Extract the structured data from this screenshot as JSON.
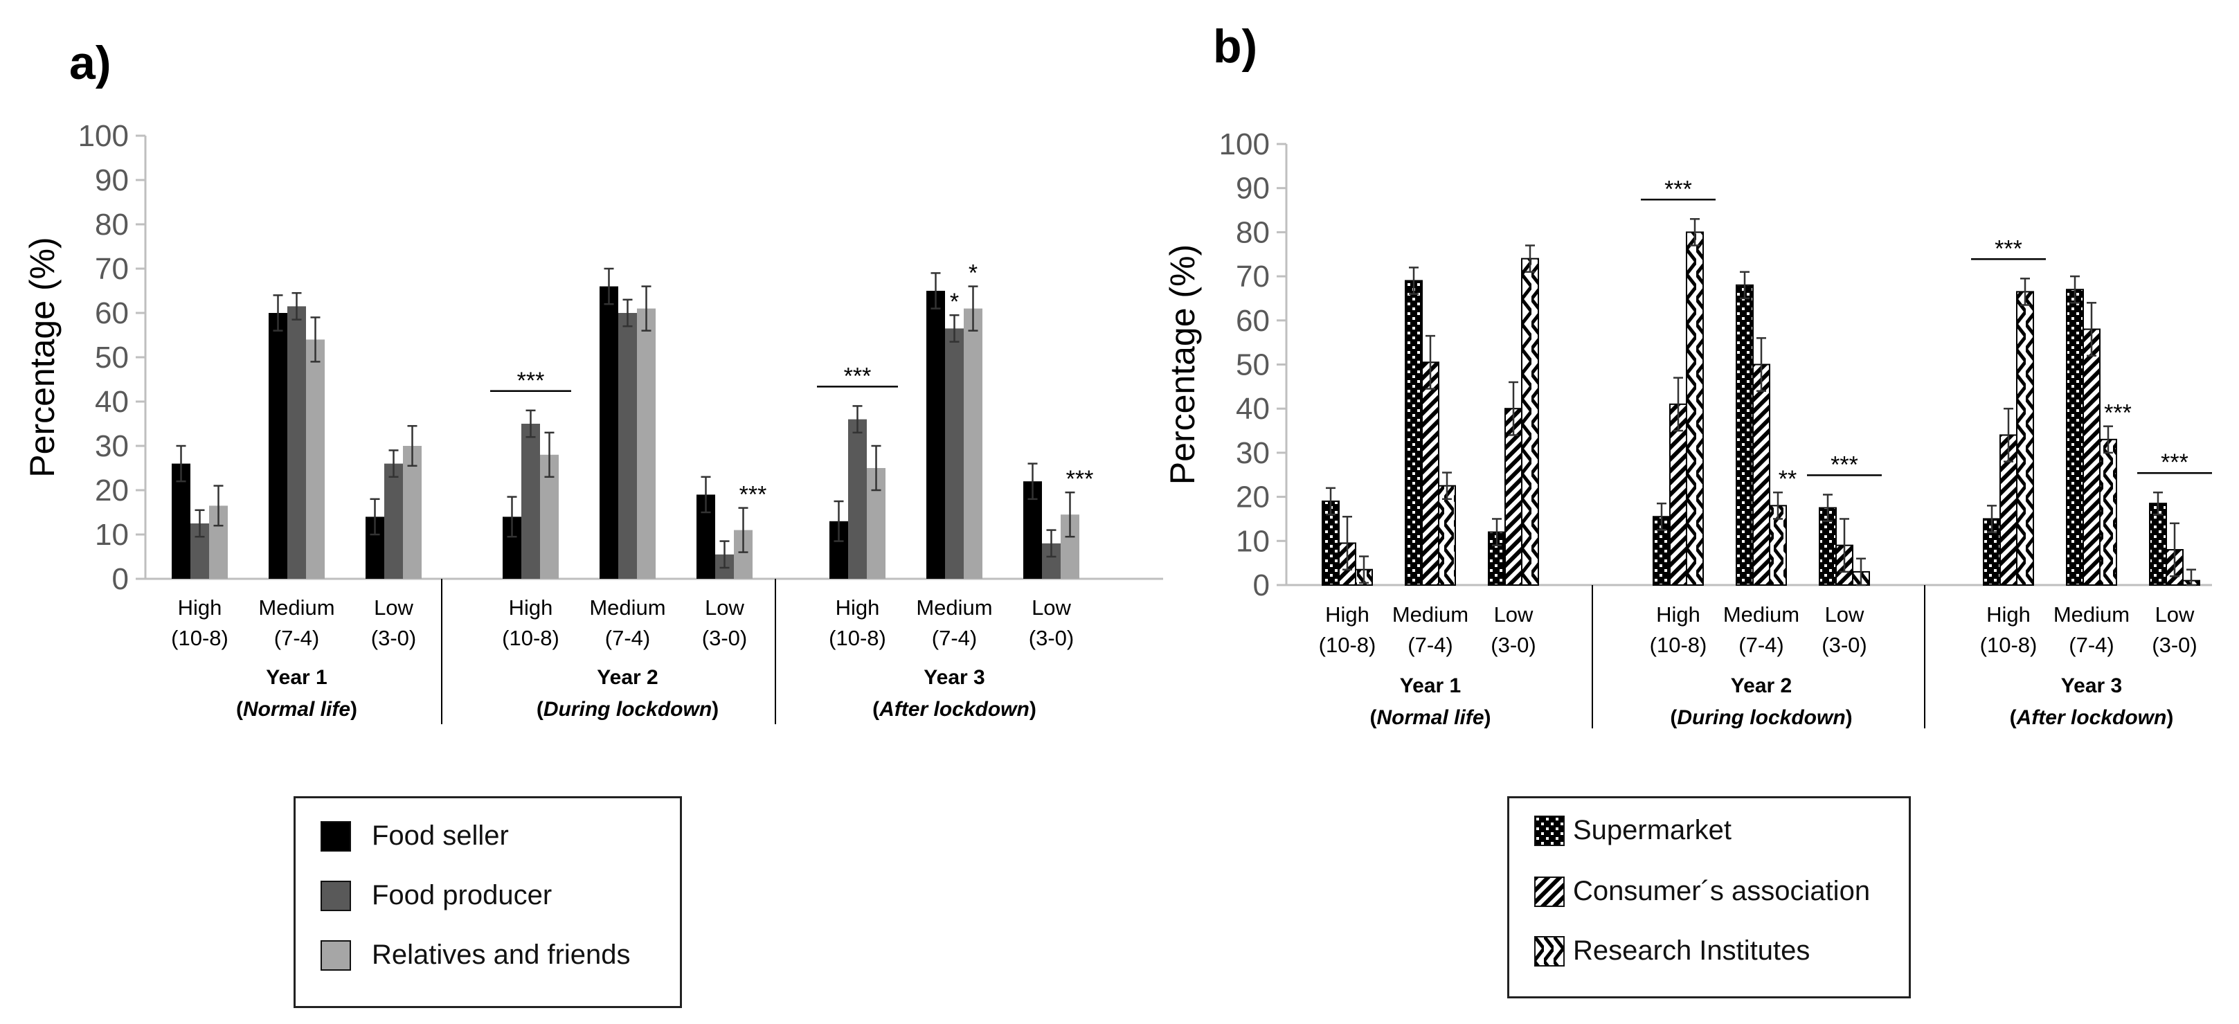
{
  "chart_data": [
    {
      "panel_label": "a)",
      "type": "bar",
      "ylabel": "Percentage (%)",
      "ylim": [
        0,
        100
      ],
      "yticks": [
        "0",
        "10",
        "20",
        "30",
        "40",
        "50",
        "60",
        "70",
        "80",
        "90",
        "100"
      ],
      "groups": [
        {
          "year": "Year 1",
          "condition": "Normal life",
          "condition_open": "(",
          "condition_close": ")",
          "categories": [
            {
              "label": "High",
              "range": "(10-8)"
            },
            {
              "label": "Medium",
              "range": "(7-4)"
            },
            {
              "label": "Low",
              "range": "(3-0)"
            }
          ]
        },
        {
          "year": "Year 2",
          "condition": "During lockdown",
          "condition_open": "(",
          "condition_close": ")",
          "categories": [
            {
              "label": "High",
              "range": "(10-8)"
            },
            {
              "label": "Medium",
              "range": "(7-4)"
            },
            {
              "label": "Low",
              "range": "(3-0)"
            }
          ]
        },
        {
          "year": "Year 3",
          "condition": "After lockdown",
          "condition_open": "(",
          "condition_close": ")",
          "categories": [
            {
              "label": "High",
              "range": "(10-8)"
            },
            {
              "label": "Medium",
              "range": "(7-4)"
            },
            {
              "label": "Low",
              "range": "(3-0)"
            }
          ]
        }
      ],
      "series": [
        {
          "name": "Food seller",
          "color": "#000000",
          "pattern": "solid",
          "values": [
            26,
            60,
            14,
            14,
            66,
            19,
            13,
            65,
            22
          ],
          "errors": [
            4,
            4,
            4,
            4.5,
            4,
            4,
            4.5,
            4,
            4
          ]
        },
        {
          "name": "Food producer",
          "color": "#595959",
          "pattern": "solid",
          "values": [
            12.5,
            61.5,
            26,
            35,
            60,
            5.5,
            36,
            56.5,
            8
          ],
          "errors": [
            3,
            3,
            3,
            3,
            3,
            3,
            3,
            3,
            3
          ]
        },
        {
          "name": "Relatives and friends",
          "color": "#a6a6a6",
          "pattern": "solid",
          "values": [
            16.5,
            54,
            30,
            28,
            61,
            11,
            25,
            61,
            14.5
          ],
          "errors": [
            4.5,
            5,
            4.5,
            5,
            5,
            5,
            5,
            5,
            5
          ]
        }
      ],
      "annotations": [
        {
          "text": "***",
          "group": 1,
          "category": 0,
          "type": "bracket"
        },
        {
          "text": "***",
          "group": 1,
          "category": 2,
          "type": "over-series",
          "series": 2
        },
        {
          "text": "***",
          "group": 2,
          "category": 0,
          "type": "bracket"
        },
        {
          "text": "*",
          "group": 2,
          "category": 1,
          "type": "over-series",
          "series": 1
        },
        {
          "text": "*",
          "group": 2,
          "category": 1,
          "type": "over-series",
          "series": 2
        },
        {
          "text": "***",
          "group": 2,
          "category": 2,
          "type": "over-series",
          "series": 2
        }
      ]
    },
    {
      "panel_label": "b)",
      "type": "bar",
      "ylabel": "Percentage (%)",
      "ylim": [
        0,
        100
      ],
      "yticks": [
        "0",
        "10",
        "20",
        "30",
        "40",
        "50",
        "60",
        "70",
        "80",
        "90",
        "100"
      ],
      "groups": [
        {
          "year": "Year 1",
          "condition": "Normal life",
          "condition_open": "(",
          "condition_close": ")",
          "categories": [
            {
              "label": "High",
              "range": "(10-8)"
            },
            {
              "label": "Medium",
              "range": "(7-4)"
            },
            {
              "label": "Low",
              "range": "(3-0)"
            }
          ]
        },
        {
          "year": "Year 2",
          "condition": "During lockdown",
          "condition_open": "(",
          "condition_close": ")",
          "categories": [
            {
              "label": "High",
              "range": "(10-8)"
            },
            {
              "label": "Medium",
              "range": "(7-4)"
            },
            {
              "label": "Low",
              "range": "(3-0)"
            }
          ]
        },
        {
          "year": "Year 3",
          "condition": "After lockdown",
          "condition_open": "(",
          "condition_close": ")",
          "categories": [
            {
              "label": "High",
              "range": "(10-8)"
            },
            {
              "label": "Medium",
              "range": "(7-4)"
            },
            {
              "label": "Low",
              "range": "(3-0)"
            }
          ]
        }
      ],
      "series": [
        {
          "name": "Supermarket",
          "color": "#000000",
          "pattern": "dots",
          "values": [
            19,
            69,
            12,
            15.5,
            68,
            17.5,
            15,
            67,
            18.5
          ],
          "errors": [
            3,
            3,
            3,
            3,
            3,
            3,
            3,
            3,
            2.5
          ]
        },
        {
          "name": "Consumer´s association",
          "color": "#000000",
          "pattern": "diagonal",
          "values": [
            9.5,
            50.5,
            40,
            41,
            50,
            9,
            34,
            58,
            8
          ],
          "errors": [
            6,
            6,
            6,
            6,
            6,
            6,
            6,
            6,
            6
          ]
        },
        {
          "name": "Research Institutes",
          "color": "#000000",
          "pattern": "zigzag",
          "values": [
            3.5,
            22.5,
            74,
            80,
            18,
            3,
            66.5,
            33,
            1
          ],
          "errors": [
            3,
            3,
            3,
            3,
            3,
            3,
            3,
            3,
            2.5
          ]
        }
      ],
      "annotations": [
        {
          "text": "***",
          "group": 1,
          "category": 0,
          "type": "bracket"
        },
        {
          "text": "**",
          "group": 1,
          "category": 1,
          "type": "over-series",
          "series": 2
        },
        {
          "text": "***",
          "group": 1,
          "category": 2,
          "type": "bracket"
        },
        {
          "text": "***",
          "group": 2,
          "category": 0,
          "type": "bracket"
        },
        {
          "text": "***",
          "group": 2,
          "category": 1,
          "type": "over-series",
          "series": 2
        },
        {
          "text": "***",
          "group": 2,
          "category": 2,
          "type": "bracket"
        }
      ]
    }
  ]
}
